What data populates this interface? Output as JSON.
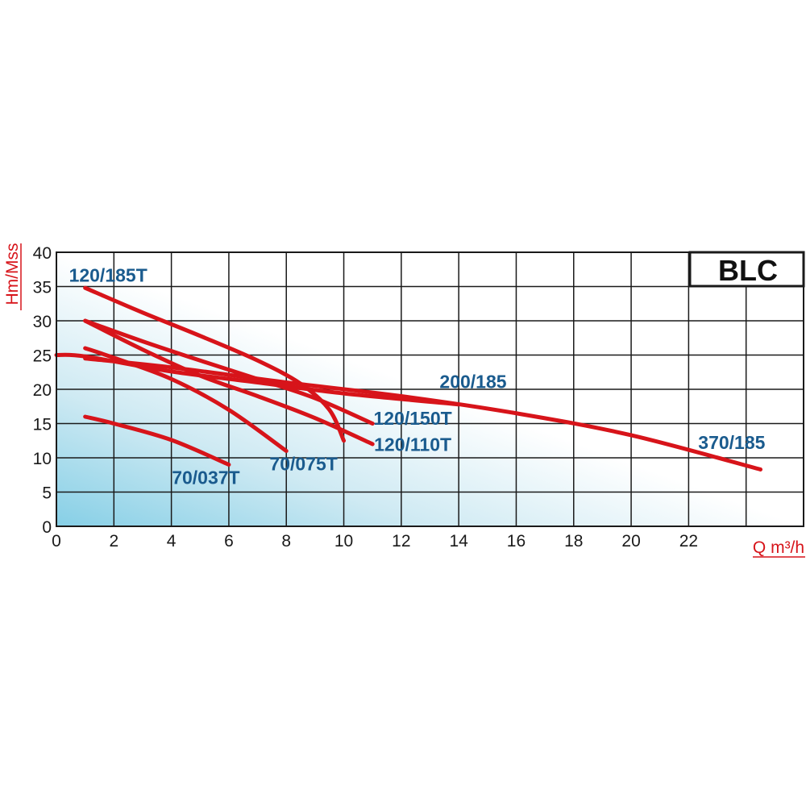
{
  "chart_data": {
    "type": "line",
    "badge": "BLC",
    "ylabel": "Hm/Mss",
    "xlabel": "Q m³/h",
    "xlim": [
      0,
      26
    ],
    "ylim": [
      0,
      40
    ],
    "x_ticks": [
      0,
      2,
      4,
      6,
      8,
      10,
      12,
      14,
      16,
      18,
      20,
      22
    ],
    "y_ticks": [
      0,
      5,
      10,
      15,
      20,
      25,
      30,
      35,
      40
    ],
    "grid": true,
    "colors": {
      "curve": "#d7141a",
      "label": "#1a5b8e",
      "axis_title": "#d7141a",
      "grid": "#1a1a1a",
      "bg_left": "#86cfe6",
      "bg_right": "#ffffff"
    },
    "series": [
      {
        "name": "120/185T",
        "points": [
          [
            1,
            34.8
          ],
          [
            3,
            31.2
          ],
          [
            5,
            27.8
          ],
          [
            7,
            24.2
          ],
          [
            8.5,
            20.8
          ],
          [
            9.5,
            17.0
          ],
          [
            10,
            12.5
          ]
        ]
      },
      {
        "name": "120/150T",
        "points": [
          [
            1,
            30.0
          ],
          [
            3,
            27.0
          ],
          [
            5,
            24.2
          ],
          [
            7,
            21.5
          ],
          [
            9,
            18.7
          ],
          [
            11,
            15.0
          ]
        ]
      },
      {
        "name": "120/110T",
        "points": [
          [
            1,
            30.0
          ],
          [
            3,
            25.8
          ],
          [
            5,
            22.0
          ],
          [
            7,
            19.0
          ],
          [
            9,
            15.8
          ],
          [
            11,
            12.0
          ]
        ]
      },
      {
        "name": "70/075T",
        "points": [
          [
            1,
            26.0
          ],
          [
            2,
            24.6
          ],
          [
            4,
            21.5
          ],
          [
            6,
            17.0
          ],
          [
            8,
            11.0
          ]
        ]
      },
      {
        "name": "70/037T",
        "points": [
          [
            1,
            16.0
          ],
          [
            2,
            15.0
          ],
          [
            4,
            12.6
          ],
          [
            6,
            9.0
          ]
        ]
      },
      {
        "name": "200/185",
        "points": [
          [
            0,
            25.0
          ],
          [
            1,
            24.8
          ],
          [
            4,
            22.6
          ],
          [
            7,
            21.0
          ],
          [
            10,
            19.4
          ],
          [
            14,
            17.8
          ]
        ]
      },
      {
        "name": "370/185",
        "points": [
          [
            1,
            24.5
          ],
          [
            4,
            23.2
          ],
          [
            8,
            21.0
          ],
          [
            12,
            19.0
          ],
          [
            16,
            16.5
          ],
          [
            20,
            13.3
          ],
          [
            24.5,
            8.3
          ]
        ]
      }
    ],
    "curve_labels": [
      {
        "text": "120/185T",
        "x": 1.8,
        "y": 35.7
      },
      {
        "text": "120/150T",
        "x": 12.4,
        "y": 14.8
      },
      {
        "text": "120/110T",
        "x": 12.4,
        "y": 11.0
      },
      {
        "text": "70/075T",
        "x": 8.6,
        "y": 8.2
      },
      {
        "text": "70/037T",
        "x": 5.2,
        "y": 6.2
      },
      {
        "text": "200/185",
        "x": 14.5,
        "y": 20.2
      },
      {
        "text": "370/185",
        "x": 23.5,
        "y": 11.3
      }
    ]
  }
}
